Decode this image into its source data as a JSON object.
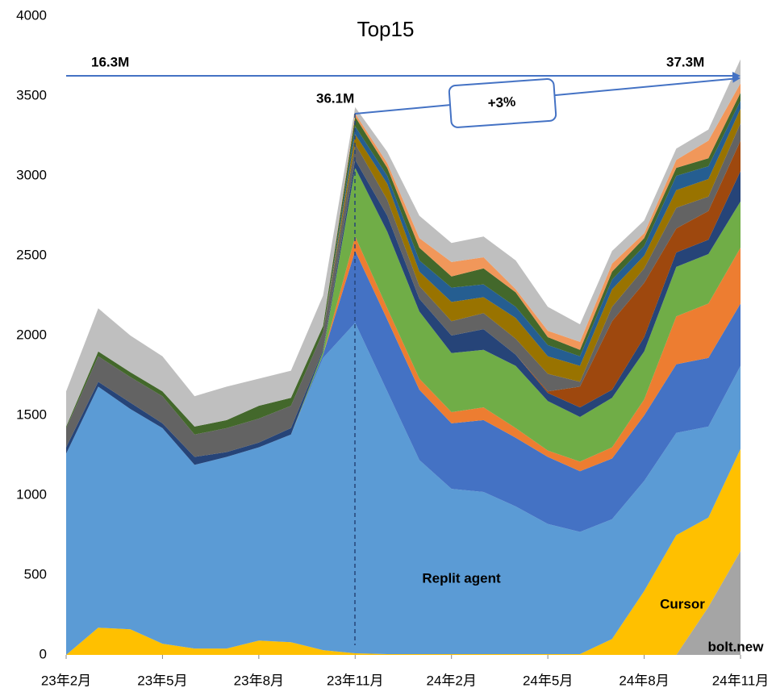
{
  "chart_data": {
    "type": "stacked_area",
    "title": "Top15",
    "annotations": [
      "16.3M",
      "37.3M",
      "36.1M",
      "+3%"
    ],
    "categories": [
      "23年2月",
      null,
      null,
      "23年5月",
      null,
      null,
      "23年8月",
      null,
      null,
      "23年11月",
      null,
      null,
      "24年2月",
      null,
      null,
      "24年5月",
      null,
      null,
      "24年8月",
      null,
      null,
      "24年11月"
    ],
    "ylim": [
      0,
      4000
    ],
    "yticks": [
      0,
      500,
      1000,
      1500,
      2000,
      2500,
      3000,
      3500,
      4000
    ],
    "grid": false,
    "series": [
      {
        "name": "bolt.new",
        "color": "#a5a5a5",
        "values": [
          0,
          0,
          0,
          0,
          0,
          0,
          0,
          0,
          0,
          0,
          0,
          0,
          0,
          0,
          0,
          0,
          0,
          0,
          0,
          0,
          300,
          650
        ]
      },
      {
        "name": "Cursor",
        "color": "#ffc000",
        "values": [
          0,
          170,
          160,
          70,
          40,
          40,
          90,
          80,
          30,
          10,
          5,
          5,
          5,
          5,
          5,
          5,
          5,
          100,
          400,
          750,
          560,
          640
        ]
      },
      {
        "name": "Replit agent",
        "color": "#5b9bd5",
        "values": [
          1260,
          1510,
          1380,
          1350,
          1150,
          1200,
          1210,
          1300,
          1830,
          2070,
          1645,
          1215,
          1035,
          1015,
          925,
          815,
          765,
          750,
          690,
          640,
          570,
          520
        ]
      },
      {
        "color": "#4472c4",
        "values": [
          0,
          0,
          0,
          0,
          0,
          0,
          0,
          0,
          20,
          450,
          450,
          440,
          410,
          450,
          430,
          420,
          380,
          380,
          410,
          430,
          430,
          390
        ]
      },
      {
        "color": "#ed7d31",
        "values": [
          0,
          0,
          0,
          0,
          0,
          0,
          0,
          0,
          0,
          90,
          70,
          70,
          70,
          80,
          60,
          40,
          60,
          70,
          100,
          300,
          340,
          350
        ]
      },
      {
        "color": "#70ad47",
        "values": [
          0,
          0,
          0,
          0,
          0,
          0,
          0,
          0,
          20,
          430,
          480,
          420,
          370,
          360,
          390,
          310,
          280,
          310,
          300,
          310,
          310,
          290
        ]
      },
      {
        "color": "#264478",
        "values": [
          40,
          30,
          40,
          30,
          50,
          30,
          30,
          40,
          10,
          50,
          100,
          80,
          110,
          130,
          70,
          50,
          60,
          50,
          90,
          90,
          90,
          190
        ]
      },
      {
        "color": "#9e480e",
        "values": [
          0,
          0,
          0,
          0,
          0,
          0,
          0,
          0,
          0,
          0,
          0,
          0,
          0,
          0,
          0,
          10,
          130,
          430,
          340,
          150,
          180,
          190
        ]
      },
      {
        "color": "#636363",
        "values": [
          120,
          160,
          160,
          170,
          140,
          150,
          150,
          140,
          110,
          100,
          100,
          80,
          90,
          100,
          100,
          110,
          30,
          90,
          90,
          130,
          90,
          110
        ]
      },
      {
        "color": "#997300",
        "values": [
          0,
          0,
          0,
          0,
          0,
          0,
          0,
          0,
          0,
          60,
          100,
          90,
          120,
          100,
          130,
          110,
          100,
          110,
          80,
          110,
          110,
          90
        ]
      },
      {
        "color": "#255e91",
        "values": [
          0,
          0,
          0,
          0,
          0,
          0,
          0,
          0,
          0,
          50,
          50,
          70,
          90,
          80,
          70,
          70,
          60,
          60,
          60,
          90,
          80,
          50
        ]
      },
      {
        "color": "#43682b",
        "values": [
          10,
          30,
          30,
          30,
          50,
          50,
          80,
          50,
          40,
          60,
          50,
          80,
          70,
          100,
          90,
          50,
          40,
          50,
          50,
          50,
          50,
          50
        ]
      },
      {
        "color": "#f1975a",
        "values": [
          0,
          0,
          0,
          0,
          0,
          0,
          0,
          0,
          0,
          20,
          30,
          60,
          90,
          70,
          20,
          40,
          50,
          50,
          30,
          50,
          110,
          60
        ]
      },
      {
        "color": "#bfbfbf",
        "values": [
          220,
          270,
          230,
          220,
          190,
          210,
          170,
          170,
          190,
          40,
          70,
          140,
          120,
          130,
          180,
          150,
          110,
          80,
          80,
          70,
          70,
          150
        ]
      }
    ]
  }
}
